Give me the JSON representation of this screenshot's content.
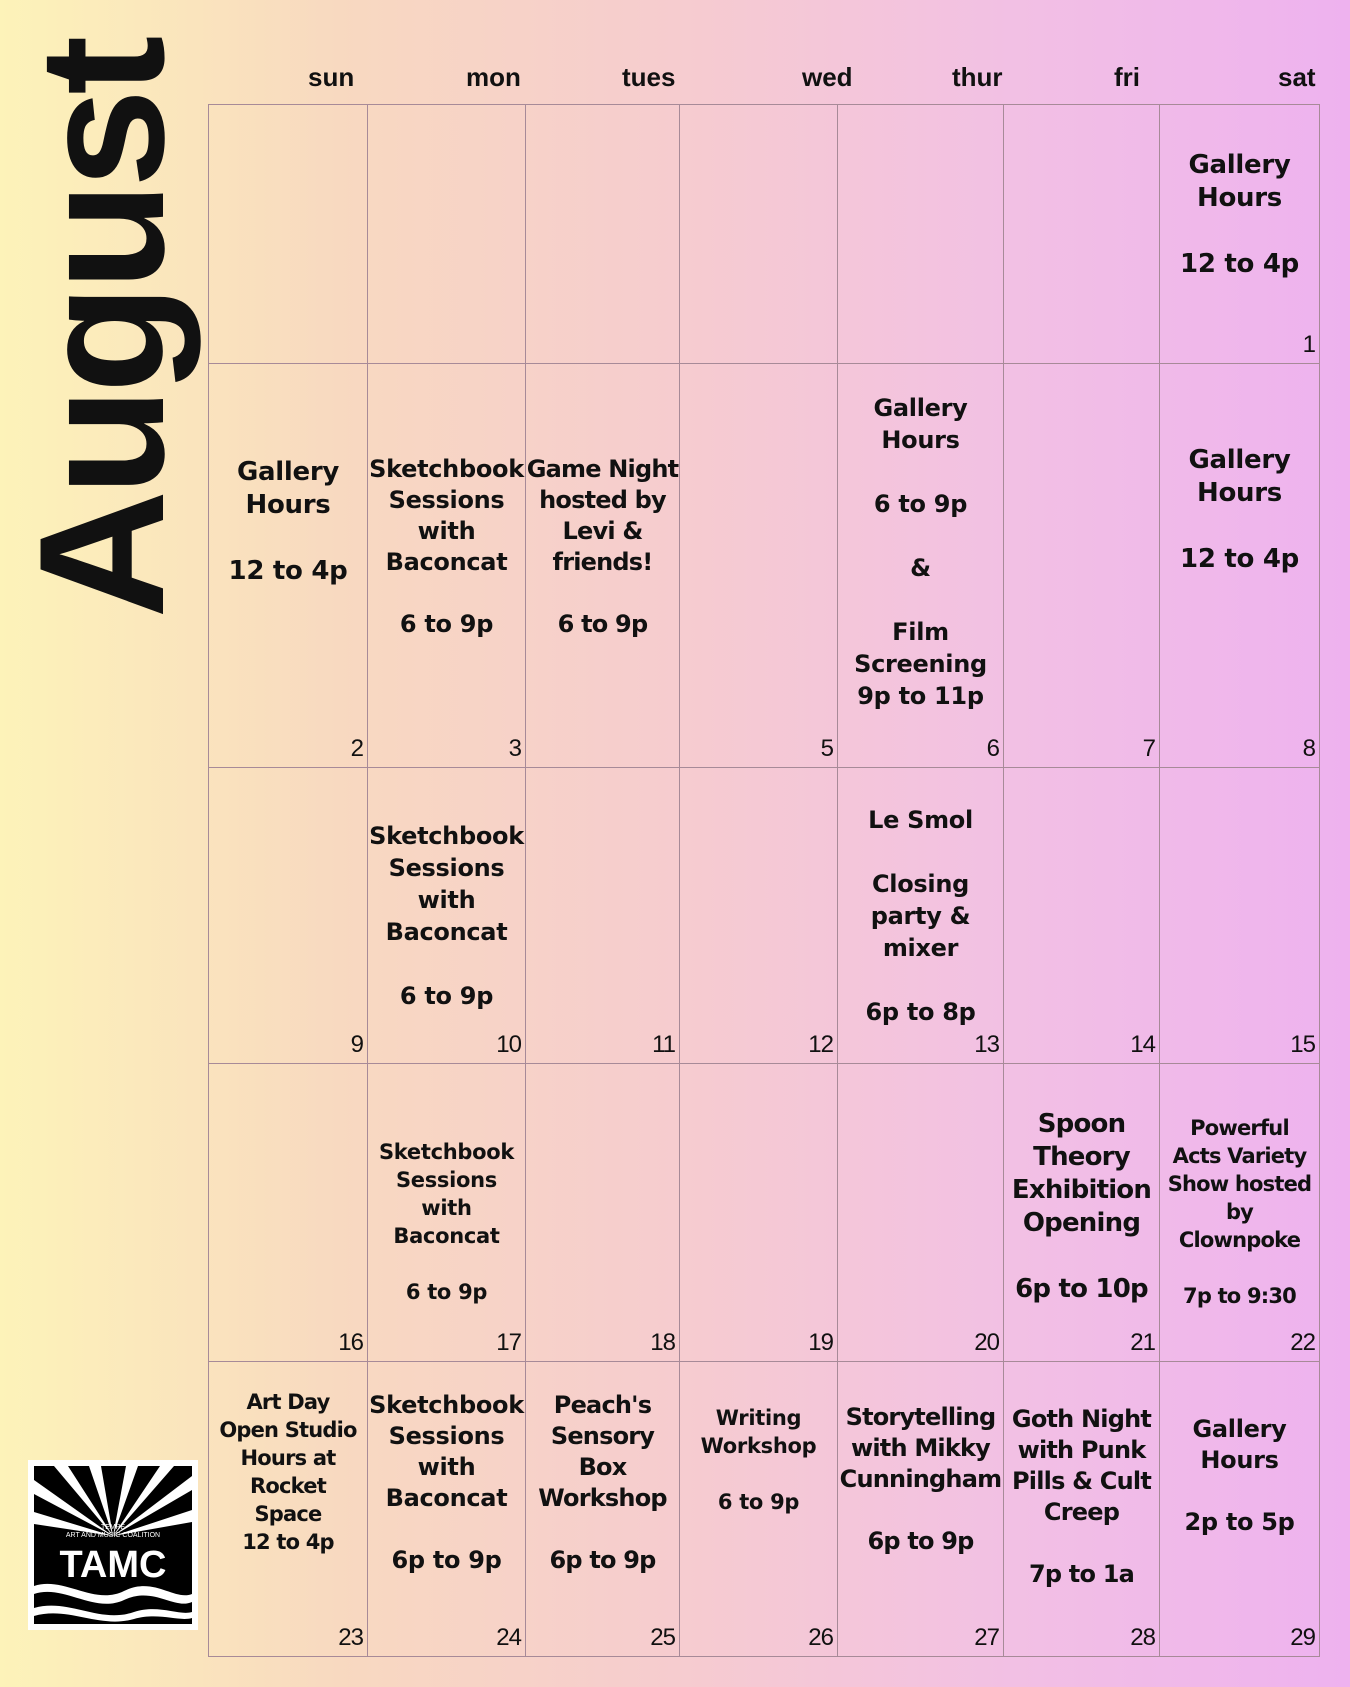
{
  "month": "August",
  "weekdays": [
    "sun",
    "mon",
    "tues",
    "wed",
    "thur",
    "fri",
    "sat"
  ],
  "weeks": [
    [
      {
        "day": "",
        "event": ""
      },
      {
        "day": "",
        "event": ""
      },
      {
        "day": "",
        "event": ""
      },
      {
        "day": "",
        "event": ""
      },
      {
        "day": "",
        "event": ""
      },
      {
        "day": "",
        "event": ""
      },
      {
        "day": "1",
        "event": "Gallery\nHours\n\n12 to 4p"
      }
    ],
    [
      {
        "day": "2",
        "event": "Gallery\nHours\n\n12 to 4p"
      },
      {
        "day": "3",
        "event": "Sketchbook\nSessions\nwith\nBaconcat\n\n6 to 9p"
      },
      {
        "day": "",
        "event": "Game Night\nhosted by\nLevi &\nfriends!\n\n6 to 9p"
      },
      {
        "day": "5",
        "event": ""
      },
      {
        "day": "6",
        "event": "Gallery\nHours\n\n6 to 9p\n\n&\n\nFilm\nScreening\n9p to 11p"
      },
      {
        "day": "7",
        "event": ""
      },
      {
        "day": "8",
        "event": "Gallery\nHours\n\n12 to 4p"
      }
    ],
    [
      {
        "day": "9",
        "event": ""
      },
      {
        "day": "10",
        "event": "Sketchbook\nSessions\nwith\nBaconcat\n\n6 to 9p"
      },
      {
        "day": "11",
        "event": ""
      },
      {
        "day": "12",
        "event": ""
      },
      {
        "day": "13",
        "event": "Le Smol\n\nClosing\nparty &\nmixer\n\n6p to 8p"
      },
      {
        "day": "14",
        "event": ""
      },
      {
        "day": "15",
        "event": ""
      }
    ],
    [
      {
        "day": "16",
        "event": ""
      },
      {
        "day": "17",
        "event": "Sketchbook\nSessions\nwith\nBaconcat\n\n6 to 9p"
      },
      {
        "day": "18",
        "event": ""
      },
      {
        "day": "19",
        "event": ""
      },
      {
        "day": "20",
        "event": ""
      },
      {
        "day": "21",
        "event": "Spoon\nTheory\nExhibition\nOpening\n\n6p to 10p"
      },
      {
        "day": "22",
        "event": "Powerful\nActs Variety\nShow hosted\nby\nClownpoke\n\n7p to 9:30"
      }
    ],
    [
      {
        "day": "23",
        "event": "Art Day\nOpen Studio\nHours at\nRocket\nSpace\n12 to 4p"
      },
      {
        "day": "24",
        "event": "Sketchbook\nSessions\nwith\nBaconcat\n\n6p to 9p"
      },
      {
        "day": "25",
        "event": "Peach's\nSensory Box\nWorkshop\n\n6p to 9p"
      },
      {
        "day": "26",
        "event": "Writing\nWorkshop\n\n6 to 9p"
      },
      {
        "day": "27",
        "event": "Storytelling\nwith Mikky\nCunningham\n\n6p to 9p"
      },
      {
        "day": "28",
        "event": "Goth Night\nwith Punk\nPills & Cult\nCreep\n\n7p to 1a"
      },
      {
        "day": "29",
        "event": "Gallery\nHours\n\n2p to 5p"
      }
    ]
  ],
  "logo": {
    "small_text": "TEMPE\nART AND MUSIC COALITION",
    "big_text": "TAMC"
  }
}
